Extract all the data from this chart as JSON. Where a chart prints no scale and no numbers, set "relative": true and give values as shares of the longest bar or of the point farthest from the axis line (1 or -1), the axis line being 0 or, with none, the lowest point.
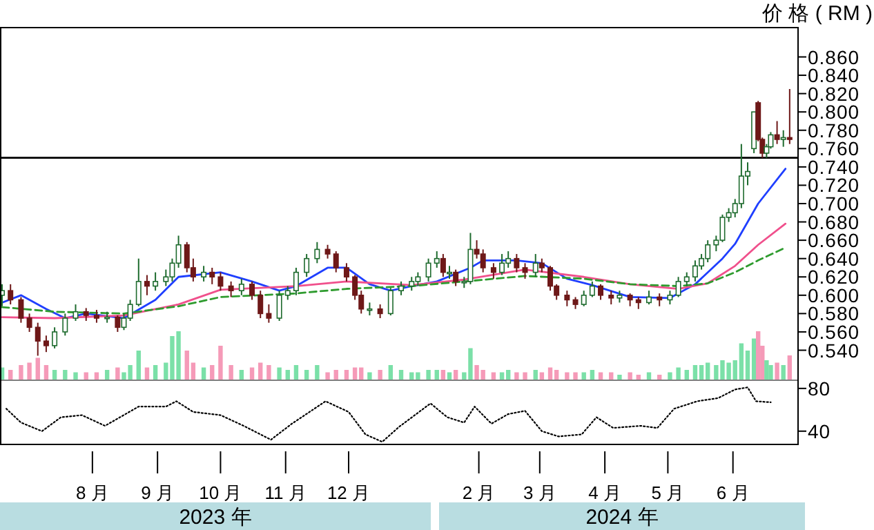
{
  "chart_data": [
    {
      "type": "candlestick",
      "ylabel": "价 格 ( RM )",
      "tick_labels": "y",
      "xlim": [
        "2023-06-18",
        "2024-07-02"
      ],
      "ylim": [
        0.508,
        0.892
      ],
      "yticks": [
        {
          "value": 0.54,
          "label": "0.540"
        },
        {
          "value": 0.56,
          "label": "0.560"
        },
        {
          "value": 0.58,
          "label": "0.580"
        },
        {
          "value": 0.6,
          "label": "0.600"
        },
        {
          "value": 0.62,
          "label": "0.620"
        },
        {
          "value": 0.64,
          "label": "0.640"
        },
        {
          "value": 0.66,
          "label": "0.660"
        },
        {
          "value": 0.68,
          "label": "0.680"
        },
        {
          "value": 0.7,
          "label": "0.700"
        },
        {
          "value": 0.72,
          "label": "0.720"
        },
        {
          "value": 0.74,
          "label": "0.740"
        },
        {
          "value": 0.76,
          "label": "0.760"
        },
        {
          "value": 0.78,
          "label": "0.780"
        },
        {
          "value": 0.8,
          "label": "0.800"
        },
        {
          "value": 0.82,
          "label": "0.820"
        },
        {
          "value": 0.84,
          "label": "0.840"
        },
        {
          "value": 0.86,
          "label": "0.860"
        }
      ],
      "ref_lines": [
        {
          "axis": "y",
          "value": 0.75,
          "color": "#000000"
        }
      ],
      "x": [
        "2023-06-19",
        "2023-06-23",
        "2023-06-28",
        "2023-07-02",
        "2023-07-06",
        "2023-07-10",
        "2023-07-14",
        "2023-07-19",
        "2023-07-24",
        "2023-07-29",
        "2023-08-03",
        "2023-08-08",
        "2023-08-13",
        "2023-08-16",
        "2023-08-19",
        "2023-08-23",
        "2023-08-27",
        "2023-08-31",
        "2023-09-05",
        "2023-09-08",
        "2023-09-11",
        "2023-09-15",
        "2023-09-18",
        "2023-09-23",
        "2023-09-27",
        "2023-10-01",
        "2023-10-06",
        "2023-10-11",
        "2023-10-16",
        "2023-10-20",
        "2023-10-24",
        "2023-10-29",
        "2023-11-02",
        "2023-11-06",
        "2023-11-11",
        "2023-11-16",
        "2023-11-21",
        "2023-11-25",
        "2023-11-30",
        "2023-12-04",
        "2023-12-07",
        "2023-12-11",
        "2023-12-16",
        "2023-12-21",
        "2023-12-26",
        "2023-12-31",
        "2024-01-03",
        "2024-01-08",
        "2024-01-12",
        "2024-01-15",
        "2024-01-18",
        "2024-01-21",
        "2024-01-25",
        "2024-01-28",
        "2024-01-31",
        "2024-02-03",
        "2024-02-08",
        "2024-02-12",
        "2024-02-15",
        "2024-02-19",
        "2024-02-23",
        "2024-02-28",
        "2024-03-02",
        "2024-03-06",
        "2024-03-09",
        "2024-03-14",
        "2024-03-18",
        "2024-03-22",
        "2024-03-26",
        "2024-03-30",
        "2024-04-04",
        "2024-04-08",
        "2024-04-13",
        "2024-04-17",
        "2024-04-22",
        "2024-04-27",
        "2024-05-02",
        "2024-05-06",
        "2024-05-10",
        "2024-05-14",
        "2024-05-17",
        "2024-05-20",
        "2024-05-24",
        "2024-05-27",
        "2024-05-30",
        "2024-06-02",
        "2024-06-05",
        "2024-06-08",
        "2024-06-11",
        "2024-06-13",
        "2024-06-15",
        "2024-06-17",
        "2024-06-19",
        "2024-06-22",
        "2024-06-25",
        "2024-06-28"
      ],
      "ohlc": [
        [
          0.6,
          0.612,
          0.588,
          0.605
        ],
        [
          0.605,
          0.612,
          0.59,
          0.595
        ],
        [
          0.595,
          0.598,
          0.57,
          0.575
        ],
        [
          0.575,
          0.58,
          0.56,
          0.565
        ],
        [
          0.565,
          0.57,
          0.534,
          0.55
        ],
        [
          0.55,
          0.556,
          0.538,
          0.545
        ],
        [
          0.545,
          0.565,
          0.542,
          0.56
        ],
        [
          0.56,
          0.58,
          0.556,
          0.575
        ],
        [
          0.575,
          0.59,
          0.572,
          0.582
        ],
        [
          0.582,
          0.586,
          0.572,
          0.578
        ],
        [
          0.578,
          0.584,
          0.57,
          0.575
        ],
        [
          0.575,
          0.582,
          0.57,
          0.576
        ],
        [
          0.576,
          0.578,
          0.56,
          0.565
        ],
        [
          0.565,
          0.58,
          0.562,
          0.575
        ],
        [
          0.575,
          0.595,
          0.572,
          0.59
        ],
        [
          0.59,
          0.64,
          0.588,
          0.615
        ],
        [
          0.615,
          0.622,
          0.6,
          0.61
        ],
        [
          0.61,
          0.625,
          0.605,
          0.615
        ],
        [
          0.615,
          0.628,
          0.61,
          0.62
        ],
        [
          0.62,
          0.64,
          0.615,
          0.635
        ],
        [
          0.635,
          0.665,
          0.63,
          0.655
        ],
        [
          0.655,
          0.658,
          0.625,
          0.63
        ],
        [
          0.63,
          0.64,
          0.615,
          0.62
        ],
        [
          0.62,
          0.632,
          0.615,
          0.625
        ],
        [
          0.625,
          0.63,
          0.612,
          0.62
        ],
        [
          0.62,
          0.625,
          0.605,
          0.61
        ],
        [
          0.61,
          0.615,
          0.598,
          0.605
        ],
        [
          0.605,
          0.618,
          0.6,
          0.612
        ],
        [
          0.612,
          0.615,
          0.595,
          0.6
        ],
        [
          0.6,
          0.605,
          0.575,
          0.58
        ],
        [
          0.58,
          0.59,
          0.57,
          0.575
        ],
        [
          0.575,
          0.605,
          0.572,
          0.6
        ],
        [
          0.6,
          0.61,
          0.595,
          0.605
        ],
        [
          0.605,
          0.63,
          0.6,
          0.625
        ],
        [
          0.625,
          0.645,
          0.62,
          0.64
        ],
        [
          0.64,
          0.658,
          0.635,
          0.65
        ],
        [
          0.65,
          0.655,
          0.64,
          0.645
        ],
        [
          0.645,
          0.648,
          0.625,
          0.63
        ],
        [
          0.63,
          0.635,
          0.615,
          0.62
        ],
        [
          0.62,
          0.622,
          0.595,
          0.6
        ],
        [
          0.6,
          0.605,
          0.58,
          0.585
        ],
        [
          0.585,
          0.592,
          0.578,
          0.585
        ],
        [
          0.585,
          0.59,
          0.575,
          0.58
        ],
        [
          0.58,
          0.608,
          0.578,
          0.605
        ],
        [
          0.605,
          0.615,
          0.6,
          0.61
        ],
        [
          0.61,
          0.62,
          0.605,
          0.615
        ],
        [
          0.615,
          0.625,
          0.61,
          0.62
        ],
        [
          0.62,
          0.64,
          0.615,
          0.635
        ],
        [
          0.635,
          0.648,
          0.63,
          0.64
        ],
        [
          0.64,
          0.645,
          0.62,
          0.625
        ],
        [
          0.625,
          0.632,
          0.618,
          0.625
        ],
        [
          0.625,
          0.628,
          0.61,
          0.615
        ],
        [
          0.615,
          0.62,
          0.608,
          0.615
        ],
        [
          0.615,
          0.668,
          0.612,
          0.65
        ],
        [
          0.65,
          0.66,
          0.64,
          0.645
        ],
        [
          0.645,
          0.65,
          0.625,
          0.63
        ],
        [
          0.63,
          0.635,
          0.618,
          0.625
        ],
        [
          0.625,
          0.645,
          0.622,
          0.635
        ],
        [
          0.635,
          0.648,
          0.63,
          0.64
        ],
        [
          0.64,
          0.645,
          0.625,
          0.63
        ],
        [
          0.63,
          0.635,
          0.618,
          0.625
        ],
        [
          0.625,
          0.645,
          0.62,
          0.635
        ],
        [
          0.635,
          0.64,
          0.625,
          0.63
        ],
        [
          0.63,
          0.632,
          0.605,
          0.61
        ],
        [
          0.61,
          0.612,
          0.595,
          0.6
        ],
        [
          0.6,
          0.605,
          0.588,
          0.595
        ],
        [
          0.595,
          0.598,
          0.585,
          0.59
        ],
        [
          0.59,
          0.605,
          0.588,
          0.6
        ],
        [
          0.6,
          0.615,
          0.598,
          0.61
        ],
        [
          0.61,
          0.612,
          0.595,
          0.6
        ],
        [
          0.6,
          0.605,
          0.59,
          0.597
        ],
        [
          0.597,
          0.605,
          0.592,
          0.6
        ],
        [
          0.6,
          0.602,
          0.588,
          0.595
        ],
        [
          0.595,
          0.598,
          0.585,
          0.592
        ],
        [
          0.592,
          0.605,
          0.59,
          0.598
        ],
        [
          0.598,
          0.602,
          0.588,
          0.595
        ],
        [
          0.595,
          0.605,
          0.59,
          0.6
        ],
        [
          0.6,
          0.62,
          0.598,
          0.615
        ],
        [
          0.615,
          0.625,
          0.61,
          0.62
        ],
        [
          0.62,
          0.638,
          0.615,
          0.632
        ],
        [
          0.632,
          0.645,
          0.628,
          0.64
        ],
        [
          0.64,
          0.66,
          0.636,
          0.655
        ],
        [
          0.655,
          0.665,
          0.648,
          0.66
        ],
        [
          0.66,
          0.688,
          0.658,
          0.685
        ],
        [
          0.685,
          0.695,
          0.68,
          0.69
        ],
        [
          0.69,
          0.705,
          0.685,
          0.7
        ],
        [
          0.7,
          0.765,
          0.695,
          0.73
        ],
        [
          0.73,
          0.745,
          0.72,
          0.735
        ],
        [
          0.76,
          0.8,
          0.755,
          0.8
        ],
        [
          0.81,
          0.812,
          0.768,
          0.77
        ],
        [
          0.77,
          0.772,
          0.75,
          0.755
        ],
        [
          0.755,
          0.765,
          0.75,
          0.762
        ],
        [
          0.762,
          0.778,
          0.76,
          0.775
        ],
        [
          0.775,
          0.79,
          0.765,
          0.77
        ],
        [
          0.77,
          0.78,
          0.762,
          0.772
        ],
        [
          0.772,
          0.825,
          0.765,
          0.77
        ]
      ],
      "series": [
        {
          "type": "line",
          "color": "#1f3fff",
          "line_style": "solid",
          "x": [
            "2023-06-19",
            "2023-06-28",
            "2023-07-10",
            "2023-07-19",
            "2023-07-29",
            "2023-08-16",
            "2023-08-31",
            "2023-09-11",
            "2023-10-01",
            "2023-10-16",
            "2023-10-29",
            "2023-11-06",
            "2023-11-21",
            "2023-11-30",
            "2023-12-11",
            "2023-12-21",
            "2023-12-31",
            "2024-01-12",
            "2024-01-28",
            "2024-02-03",
            "2024-02-19",
            "2024-03-02",
            "2024-03-14",
            "2024-03-26",
            "2024-04-13",
            "2024-05-02",
            "2024-05-14",
            "2024-05-27",
            "2024-06-02",
            "2024-06-13",
            "2024-06-26"
          ],
          "values": [
            0.592,
            0.6,
            0.585,
            0.575,
            0.58,
            0.575,
            0.595,
            0.62,
            0.625,
            0.615,
            0.605,
            0.61,
            0.63,
            0.63,
            0.612,
            0.605,
            0.61,
            0.615,
            0.63,
            0.638,
            0.638,
            0.635,
            0.618,
            0.611,
            0.598,
            0.597,
            0.612,
            0.64,
            0.656,
            0.7,
            0.738
          ]
        },
        {
          "type": "line",
          "color": "#f0508c",
          "line_style": "solid",
          "x": [
            "2023-06-19",
            "2023-07-14",
            "2023-08-16",
            "2023-09-11",
            "2023-10-01",
            "2023-11-06",
            "2023-11-30",
            "2023-12-31",
            "2024-01-25",
            "2024-02-23",
            "2024-03-22",
            "2024-04-13",
            "2024-05-06",
            "2024-05-20",
            "2024-06-02",
            "2024-06-13",
            "2024-06-26"
          ],
          "values": [
            0.576,
            0.575,
            0.578,
            0.59,
            0.606,
            0.61,
            0.615,
            0.611,
            0.617,
            0.628,
            0.62,
            0.612,
            0.607,
            0.613,
            0.632,
            0.655,
            0.678
          ]
        },
        {
          "type": "line",
          "color": "#2e9b2e",
          "line_style": "dashed",
          "x": [
            "2023-06-19",
            "2023-07-14",
            "2023-08-16",
            "2023-09-11",
            "2023-10-01",
            "2023-11-06",
            "2023-11-30",
            "2023-12-31",
            "2024-01-25",
            "2024-02-23",
            "2024-03-22",
            "2024-04-13",
            "2024-05-06",
            "2024-05-20",
            "2024-06-02",
            "2024-06-13",
            "2024-06-26"
          ],
          "values": [
            0.587,
            0.582,
            0.58,
            0.588,
            0.598,
            0.602,
            0.607,
            0.61,
            0.615,
            0.621,
            0.618,
            0.612,
            0.61,
            0.613,
            0.625,
            0.638,
            0.652
          ]
        }
      ]
    },
    {
      "type": "bar",
      "relative": true,
      "tick_labels": false,
      "xlim": [
        "2023-06-18",
        "2024-07-02"
      ],
      "x": [
        "2023-06-19",
        "2023-06-23",
        "2023-06-28",
        "2023-07-02",
        "2023-07-06",
        "2023-07-10",
        "2023-07-14",
        "2023-07-19",
        "2023-07-24",
        "2023-07-29",
        "2023-08-03",
        "2023-08-08",
        "2023-08-13",
        "2023-08-16",
        "2023-08-19",
        "2023-08-23",
        "2023-08-27",
        "2023-08-31",
        "2023-09-05",
        "2023-09-08",
        "2023-09-11",
        "2023-09-15",
        "2023-09-18",
        "2023-09-23",
        "2023-09-27",
        "2023-10-01",
        "2023-10-06",
        "2023-10-11",
        "2023-10-16",
        "2023-10-20",
        "2023-10-24",
        "2023-10-29",
        "2023-11-02",
        "2023-11-06",
        "2023-11-11",
        "2023-11-16",
        "2023-11-21",
        "2023-11-25",
        "2023-11-30",
        "2023-12-04",
        "2023-12-07",
        "2023-12-11",
        "2023-12-16",
        "2023-12-21",
        "2023-12-26",
        "2023-12-31",
        "2024-01-03",
        "2024-01-08",
        "2024-01-12",
        "2024-01-15",
        "2024-01-18",
        "2024-01-21",
        "2024-01-25",
        "2024-01-28",
        "2024-01-31",
        "2024-02-03",
        "2024-02-08",
        "2024-02-12",
        "2024-02-15",
        "2024-02-19",
        "2024-02-23",
        "2024-02-28",
        "2024-03-02",
        "2024-03-06",
        "2024-03-09",
        "2024-03-14",
        "2024-03-18",
        "2024-03-22",
        "2024-03-26",
        "2024-03-30",
        "2024-04-04",
        "2024-04-08",
        "2024-04-13",
        "2024-04-17",
        "2024-04-22",
        "2024-04-27",
        "2024-05-02",
        "2024-05-06",
        "2024-05-10",
        "2024-05-14",
        "2024-05-17",
        "2024-05-20",
        "2024-05-24",
        "2024-05-27",
        "2024-05-30",
        "2024-06-02",
        "2024-06-05",
        "2024-06-08",
        "2024-06-11",
        "2024-06-13",
        "2024-06-15",
        "2024-06-17",
        "2024-06-19",
        "2024-06-22",
        "2024-06-25",
        "2024-06-28"
      ],
      "values": [
        0.25,
        0.2,
        0.3,
        0.35,
        0.45,
        0.3,
        0.2,
        0.2,
        0.15,
        0.15,
        0.15,
        0.2,
        0.25,
        0.15,
        0.3,
        0.6,
        0.25,
        0.3,
        0.35,
        0.9,
        1.0,
        0.6,
        0.35,
        0.25,
        0.3,
        0.7,
        0.3,
        0.2,
        0.25,
        0.35,
        0.3,
        0.25,
        0.2,
        0.3,
        0.2,
        0.3,
        0.15,
        0.2,
        0.2,
        0.25,
        0.25,
        0.15,
        0.2,
        0.3,
        0.2,
        0.15,
        0.15,
        0.2,
        0.2,
        0.2,
        0.15,
        0.2,
        0.15,
        0.65,
        0.3,
        0.2,
        0.15,
        0.15,
        0.2,
        0.15,
        0.15,
        0.2,
        0.15,
        0.25,
        0.2,
        0.15,
        0.15,
        0.15,
        0.2,
        0.15,
        0.15,
        0.1,
        0.15,
        0.1,
        0.15,
        0.1,
        0.15,
        0.25,
        0.2,
        0.3,
        0.3,
        0.35,
        0.3,
        0.4,
        0.35,
        0.4,
        0.75,
        0.6,
        0.85,
        1.0,
        0.7,
        0.4,
        0.3,
        0.35,
        0.3,
        0.5
      ],
      "colors": [
        "#7be0a8",
        "#f59ab8",
        "#f59ab8",
        "#f59ab8",
        "#f59ab8",
        "#f59ab8",
        "#7be0a8",
        "#7be0a8",
        "#7be0a8",
        "#f59ab8",
        "#f59ab8",
        "#7be0a8",
        "#f59ab8",
        "#7be0a8",
        "#7be0a8",
        "#7be0a8",
        "#f59ab8",
        "#7be0a8",
        "#7be0a8",
        "#7be0a8",
        "#7be0a8",
        "#f59ab8",
        "#f59ab8",
        "#7be0a8",
        "#f59ab8",
        "#f59ab8",
        "#f59ab8",
        "#7be0a8",
        "#f59ab8",
        "#f59ab8",
        "#f59ab8",
        "#7be0a8",
        "#7be0a8",
        "#7be0a8",
        "#7be0a8",
        "#7be0a8",
        "#f59ab8",
        "#f59ab8",
        "#f59ab8",
        "#f59ab8",
        "#f59ab8",
        "#7be0a8",
        "#f59ab8",
        "#7be0a8",
        "#7be0a8",
        "#7be0a8",
        "#7be0a8",
        "#7be0a8",
        "#7be0a8",
        "#f59ab8",
        "#7be0a8",
        "#f59ab8",
        "#7be0a8",
        "#7be0a8",
        "#f59ab8",
        "#f59ab8",
        "#f59ab8",
        "#7be0a8",
        "#7be0a8",
        "#f59ab8",
        "#f59ab8",
        "#7be0a8",
        "#f59ab8",
        "#f59ab8",
        "#f59ab8",
        "#f59ab8",
        "#f59ab8",
        "#7be0a8",
        "#7be0a8",
        "#f59ab8",
        "#f59ab8",
        "#7be0a8",
        "#f59ab8",
        "#f59ab8",
        "#7be0a8",
        "#f59ab8",
        "#7be0a8",
        "#7be0a8",
        "#7be0a8",
        "#7be0a8",
        "#7be0a8",
        "#7be0a8",
        "#7be0a8",
        "#7be0a8",
        "#7be0a8",
        "#7be0a8",
        "#7be0a8",
        "#7be0a8",
        "#7be0a8",
        "#f59ab8",
        "#f59ab8",
        "#7be0a8",
        "#7be0a8",
        "#f59ab8",
        "#7be0a8",
        "#f59ab8"
      ]
    },
    {
      "type": "line",
      "xlim": [
        "2023-06-18",
        "2024-07-02"
      ],
      "ylim": [
        25,
        87
      ],
      "yticks": [
        40,
        80
      ],
      "xticks": [
        {
          "value": "2023-08-01",
          "label": "8 月"
        },
        {
          "value": "2023-09-01",
          "label": "9 月"
        },
        {
          "value": "2023-10-01",
          "label": "10 月"
        },
        {
          "value": "2023-11-01",
          "label": "11 月"
        },
        {
          "value": "2023-12-01",
          "label": "12 月"
        },
        {
          "value": "2024-02-01",
          "label": "2 月"
        },
        {
          "value": "2024-03-01",
          "label": "3 月"
        },
        {
          "value": "2024-04-01",
          "label": "4 月"
        },
        {
          "value": "2024-05-01",
          "label": "5 月"
        },
        {
          "value": "2024-06-01",
          "label": "6 月"
        }
      ],
      "annotations": [
        "2023 年",
        "2024 年"
      ],
      "x": [
        "2023-06-21",
        "2023-06-28",
        "2023-07-08",
        "2023-07-17",
        "2023-07-27",
        "2023-08-07",
        "2023-08-23",
        "2023-09-05",
        "2023-09-10",
        "2023-09-18",
        "2023-10-01",
        "2023-10-12",
        "2023-10-25",
        "2023-11-04",
        "2023-11-20",
        "2023-12-01",
        "2023-12-09",
        "2023-12-17",
        "2023-12-25",
        "2024-01-09",
        "2024-01-17",
        "2024-01-25",
        "2024-01-30",
        "2024-02-07",
        "2024-02-15",
        "2024-02-23",
        "2024-03-02",
        "2024-03-10",
        "2024-03-21",
        "2024-03-28",
        "2024-04-05",
        "2024-04-18",
        "2024-04-26",
        "2024-05-04",
        "2024-05-15",
        "2024-05-25",
        "2024-06-02",
        "2024-06-08",
        "2024-06-12",
        "2024-06-19"
      ],
      "series": [
        {
          "color": "#000000",
          "line_style": "dotted",
          "values": [
            61,
            48,
            40,
            53,
            55,
            45,
            63,
            63,
            68,
            58,
            55,
            45,
            32,
            47,
            68,
            58,
            37,
            30,
            44,
            66,
            53,
            48,
            63,
            47,
            56,
            59,
            40,
            35,
            37,
            53,
            43,
            45,
            43,
            61,
            68,
            71,
            79,
            81,
            68,
            67
          ]
        }
      ]
    }
  ]
}
